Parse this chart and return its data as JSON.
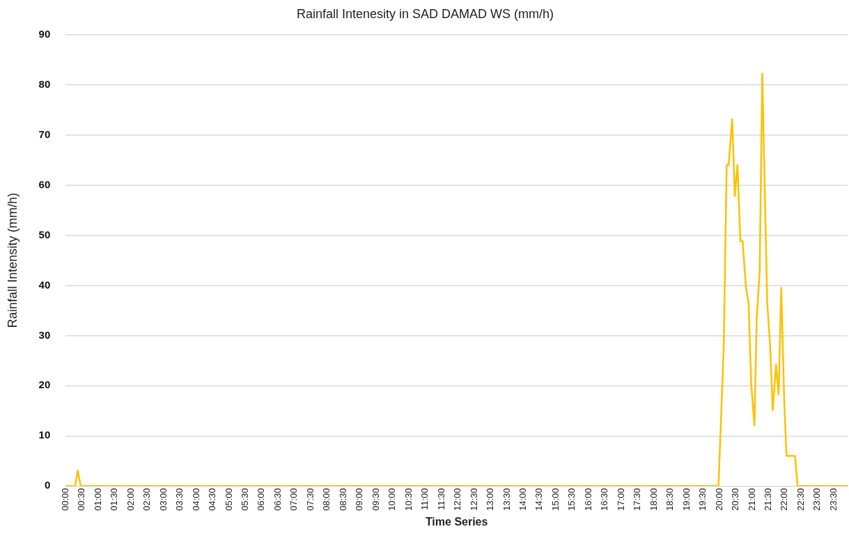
{
  "chart_data": {
    "type": "line",
    "title": "Rainfall Intenesity in SAD DAMAD WS (mm/h)",
    "xlabel": "Time Series",
    "ylabel": "Rainfall Intensity (mm/h)",
    "x": [
      0,
      0.29,
      0.37,
      0.46,
      19.97,
      20.13,
      20.22,
      20.28,
      20.39,
      20.47,
      20.55,
      20.64,
      20.71,
      20.81,
      20.89,
      20.97,
      21.07,
      21.14,
      21.23,
      21.31,
      21.46,
      21.55,
      21.63,
      21.73,
      21.81,
      21.89,
      21.98,
      22.05,
      22.31,
      22.39,
      23.92
    ],
    "series": [
      {
        "color": "#ffc000",
        "values": [
          0,
          0,
          3.1,
          0,
          0,
          27.5,
          64,
          64,
          73.1,
          57.8,
          64,
          48.8,
          48.8,
          39.5,
          36.6,
          20.4,
          12.1,
          33.5,
          42.8,
          82.2,
          36.6,
          28,
          15.1,
          24.2,
          18.2,
          39.5,
          17.1,
          6,
          6,
          0,
          0
        ]
      }
    ],
    "xlim": [
      0,
      23.92
    ],
    "xticks": [
      {
        "value": 0,
        "label": "00:00"
      },
      {
        "value": 0.5,
        "label": "00:30"
      },
      {
        "value": 1,
        "label": "01:00"
      },
      {
        "value": 1.5,
        "label": "01:30"
      },
      {
        "value": 2,
        "label": "02:00"
      },
      {
        "value": 2.5,
        "label": "02:30"
      },
      {
        "value": 3,
        "label": "03:00"
      },
      {
        "value": 3.5,
        "label": "03:30"
      },
      {
        "value": 4,
        "label": "04:00"
      },
      {
        "value": 4.5,
        "label": "04:30"
      },
      {
        "value": 5,
        "label": "05:00"
      },
      {
        "value": 5.5,
        "label": "05:30"
      },
      {
        "value": 6,
        "label": "06:00"
      },
      {
        "value": 6.5,
        "label": "06:30"
      },
      {
        "value": 7,
        "label": "07:00"
      },
      {
        "value": 7.5,
        "label": "07:30"
      },
      {
        "value": 8,
        "label": "08:00"
      },
      {
        "value": 8.5,
        "label": "08:30"
      },
      {
        "value": 9,
        "label": "09:00"
      },
      {
        "value": 9.5,
        "label": "09:30"
      },
      {
        "value": 10,
        "label": "10:00"
      },
      {
        "value": 10.5,
        "label": "10:30"
      },
      {
        "value": 11,
        "label": "11:00"
      },
      {
        "value": 11.5,
        "label": "11:30"
      },
      {
        "value": 12,
        "label": "12:00"
      },
      {
        "value": 12.5,
        "label": "12:30"
      },
      {
        "value": 13,
        "label": "13:00"
      },
      {
        "value": 13.5,
        "label": "13:30"
      },
      {
        "value": 14,
        "label": "14:00"
      },
      {
        "value": 14.5,
        "label": "14:30"
      },
      {
        "value": 15,
        "label": "15:00"
      },
      {
        "value": 15.5,
        "label": "15:30"
      },
      {
        "value": 16,
        "label": "16:00"
      },
      {
        "value": 16.5,
        "label": "16:30"
      },
      {
        "value": 17,
        "label": "17:00"
      },
      {
        "value": 17.5,
        "label": "17:30"
      },
      {
        "value": 18,
        "label": "18:00"
      },
      {
        "value": 18.5,
        "label": "18:30"
      },
      {
        "value": 19,
        "label": "19:00"
      },
      {
        "value": 19.5,
        "label": "19:30"
      },
      {
        "value": 20,
        "label": "20:00"
      },
      {
        "value": 20.5,
        "label": "20:30"
      },
      {
        "value": 21,
        "label": "21:00"
      },
      {
        "value": 21.5,
        "label": "21:30"
      },
      {
        "value": 22,
        "label": "22:00"
      },
      {
        "value": 22.5,
        "label": "22:30"
      },
      {
        "value": 23,
        "label": "23:00"
      },
      {
        "value": 23.5,
        "label": "23:30"
      }
    ],
    "ylim": [
      0,
      90
    ],
    "yticks": [
      0,
      10,
      20,
      30,
      40,
      50,
      60,
      70,
      80,
      90
    ],
    "grid": "y",
    "legend": false,
    "marker": "none",
    "line_style": "solid"
  }
}
